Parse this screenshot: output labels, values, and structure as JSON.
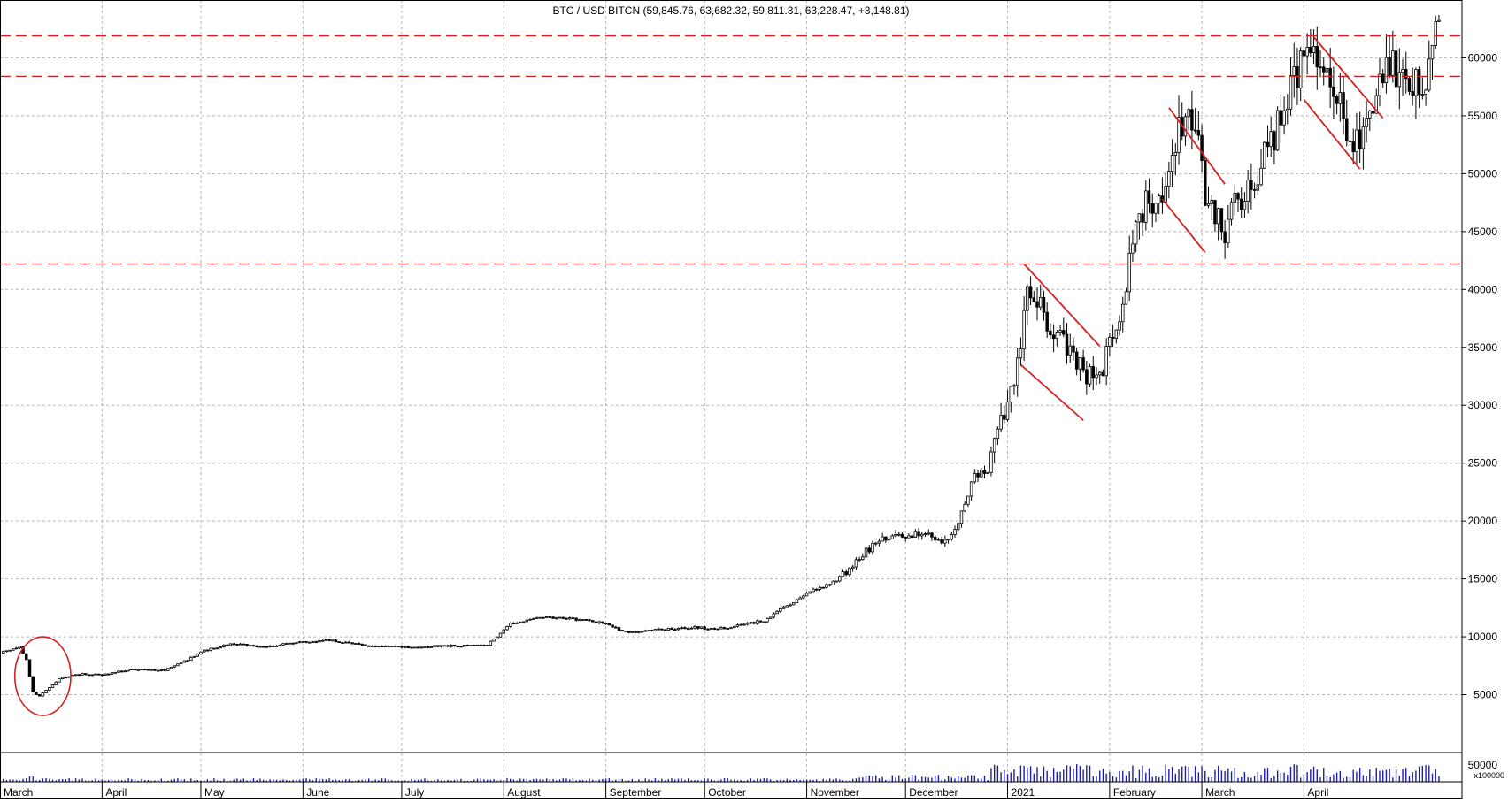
{
  "chart_data": {
    "type": "candlestick",
    "title": "BTC / USD BITCN (59,845.76, 63,682.32, 59,811.31, 63,228.47, +3,148.81)",
    "ylim": [
      0,
      65000
    ],
    "y_ticks": [
      "5000",
      "10000",
      "15000",
      "20000",
      "25000",
      "30000",
      "35000",
      "40000",
      "45000",
      "50000",
      "55000",
      "60000"
    ],
    "x_ticks": [
      {
        "label": "March",
        "day": 0
      },
      {
        "label": "April",
        "day": 31
      },
      {
        "label": "May",
        "day": 61
      },
      {
        "label": "June",
        "day": 92
      },
      {
        "label": "July",
        "day": 122
      },
      {
        "label": "August",
        "day": 153
      },
      {
        "label": "September",
        "day": 184
      },
      {
        "label": "October",
        "day": 214
      },
      {
        "label": "November",
        "day": 245
      },
      {
        "label": "December",
        "day": 275
      },
      {
        "label": "2021",
        "day": 306
      },
      {
        "label": "February",
        "day": 337
      },
      {
        "label": "March",
        "day": 365
      },
      {
        "label": "April",
        "day": 396
      }
    ],
    "volume_axis": {
      "tick": "50000",
      "unit": "x100000"
    },
    "price_path": [
      [
        0,
        8600
      ],
      [
        6,
        9100
      ],
      [
        8,
        8000
      ],
      [
        10,
        5200
      ],
      [
        12,
        4900
      ],
      [
        15,
        5600
      ],
      [
        18,
        6400
      ],
      [
        25,
        6800
      ],
      [
        31,
        6700
      ],
      [
        40,
        7200
      ],
      [
        50,
        7100
      ],
      [
        57,
        8000
      ],
      [
        62,
        8800
      ],
      [
        70,
        9400
      ],
      [
        80,
        9100
      ],
      [
        90,
        9500
      ],
      [
        100,
        9700
      ],
      [
        110,
        9300
      ],
      [
        122,
        9100
      ],
      [
        135,
        9200
      ],
      [
        148,
        9300
      ],
      [
        155,
        11100
      ],
      [
        165,
        11700
      ],
      [
        175,
        11500
      ],
      [
        183,
        11200
      ],
      [
        190,
        10400
      ],
      [
        200,
        10600
      ],
      [
        210,
        10800
      ],
      [
        220,
        10700
      ],
      [
        232,
        11400
      ],
      [
        245,
        13800
      ],
      [
        252,
        14500
      ],
      [
        258,
        15800
      ],
      [
        263,
        17400
      ],
      [
        270,
        18700
      ],
      [
        276,
        18900
      ],
      [
        282,
        19000
      ],
      [
        286,
        18100
      ],
      [
        290,
        19300
      ],
      [
        296,
        23800
      ],
      [
        300,
        24500
      ],
      [
        304,
        28800
      ],
      [
        308,
        31500
      ],
      [
        312,
        39800
      ],
      [
        316,
        38200
      ],
      [
        320,
        36800
      ],
      [
        325,
        34500
      ],
      [
        330,
        32200
      ],
      [
        335,
        33500
      ],
      [
        340,
        37200
      ],
      [
        345,
        46500
      ],
      [
        350,
        47800
      ],
      [
        355,
        48900
      ],
      [
        360,
        56200
      ],
      [
        363,
        54200
      ],
      [
        367,
        46800
      ],
      [
        372,
        45200
      ],
      [
        378,
        48600
      ],
      [
        384,
        51200
      ],
      [
        390,
        55800
      ],
      [
        394,
        58200
      ],
      [
        398,
        60800
      ],
      [
        402,
        58200
      ],
      [
        406,
        57100
      ],
      [
        411,
        51200
      ],
      [
        415,
        55300
      ],
      [
        420,
        58800
      ],
      [
        425,
        59100
      ],
      [
        430,
        57800
      ],
      [
        434,
        59200
      ],
      [
        437,
        63228
      ]
    ],
    "resistance_levels": [
      61900,
      58400,
      42200
    ],
    "channels": [
      {
        "upper": [
          [
            311,
            42200
          ],
          [
            334,
            35100
          ]
        ],
        "lower": [
          [
            310,
            33500
          ],
          [
            329,
            28700
          ]
        ]
      },
      {
        "upper": [
          [
            355,
            55700
          ],
          [
            372,
            49100
          ]
        ],
        "lower": [
          [
            353,
            47800
          ],
          [
            366,
            43200
          ]
        ]
      },
      {
        "upper": [
          [
            399,
            61800
          ],
          [
            420,
            54800
          ]
        ],
        "lower": [
          [
            396,
            56400
          ],
          [
            413,
            50400
          ]
        ]
      }
    ],
    "annotation": {
      "type": "ellipse",
      "center": [
        13,
        6600
      ],
      "radius_days": 8.5,
      "radius_value": 3400
    }
  }
}
